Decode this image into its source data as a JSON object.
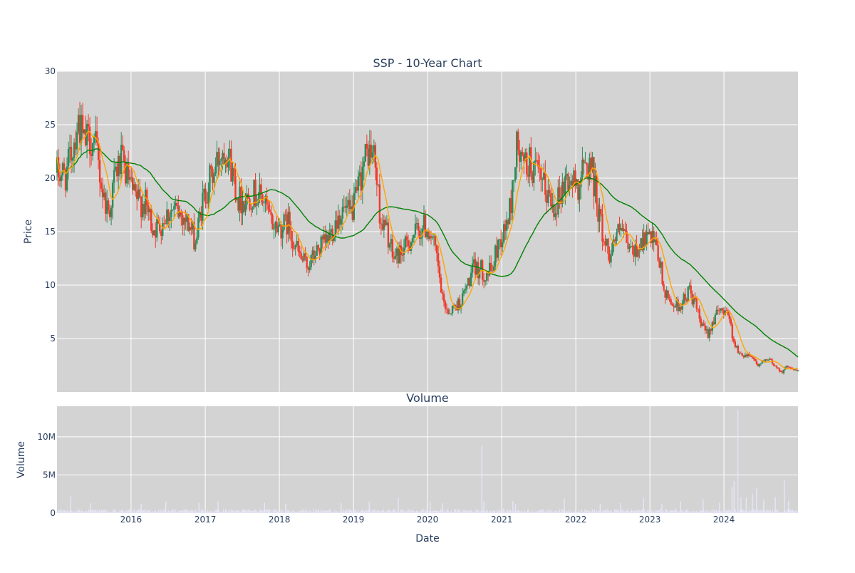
{
  "chart_data": [
    {
      "type": "candlestick",
      "title": "SSP - 10-Year Chart",
      "xlabel": "",
      "ylabel": "Price",
      "x_range": [
        "2015-01-01",
        "2024-12-31"
      ],
      "ylim": [
        0,
        30
      ],
      "y_ticks": [
        5,
        10,
        15,
        20,
        25,
        30
      ],
      "x_ticks": [
        "2016",
        "2017",
        "2018",
        "2019",
        "2020",
        "2021",
        "2022",
        "2023",
        "2024"
      ],
      "grid": true,
      "colors": {
        "up": "#2e8b57",
        "down": "#ef3b2c",
        "short_ma": "#ffa500",
        "long_ma": "#008000",
        "plot_bg": "#d3d3d3"
      },
      "series": [
        {
          "values": [
            [
              "2015-01",
              20.5
            ],
            [
              "2015-02",
              20.3
            ],
            [
              "2015-03",
              22.5
            ],
            [
              "2015-04",
              25.5
            ],
            [
              "2015-05",
              23.2
            ],
            [
              "2015-06",
              23.8
            ],
            [
              "2015-07",
              22.5
            ],
            [
              "2015-08",
              18.5
            ],
            [
              "2015-09",
              16.8
            ],
            [
              "2015-10",
              20.5
            ],
            [
              "2015-11",
              21.5
            ],
            [
              "2015-12",
              20.0
            ],
            [
              "2016-01",
              18.2
            ],
            [
              "2016-02",
              17.8
            ],
            [
              "2016-03",
              17.5
            ],
            [
              "2016-04",
              15.5
            ],
            [
              "2016-05",
              15.3
            ],
            [
              "2016-06",
              16.5
            ],
            [
              "2016-07",
              17.0
            ],
            [
              "2016-08",
              16.8
            ],
            [
              "2016-09",
              16.5
            ],
            [
              "2016-10",
              15.5
            ],
            [
              "2016-11",
              14.0
            ],
            [
              "2016-12",
              17.5
            ],
            [
              "2017-01",
              19.5
            ],
            [
              "2017-02",
              20.5
            ],
            [
              "2017-03",
              22.5
            ],
            [
              "2017-04",
              23.0
            ],
            [
              "2017-05",
              20.5
            ],
            [
              "2017-06",
              18.0
            ],
            [
              "2017-07",
              18.0
            ],
            [
              "2017-08",
              18.5
            ],
            [
              "2017-09",
              18.5
            ],
            [
              "2017-10",
              18.0
            ],
            [
              "2017-11",
              16.0
            ],
            [
              "2017-12",
              15.5
            ],
            [
              "2018-01",
              15.5
            ],
            [
              "2018-02",
              15.8
            ],
            [
              "2018-03",
              14.0
            ],
            [
              "2018-04",
              12.5
            ],
            [
              "2018-05",
              11.8
            ],
            [
              "2018-06",
              12.5
            ],
            [
              "2018-07",
              13.5
            ],
            [
              "2018-08",
              13.8
            ],
            [
              "2018-09",
              15.0
            ],
            [
              "2018-10",
              16.5
            ],
            [
              "2018-11",
              17.0
            ],
            [
              "2018-12",
              16.5
            ],
            [
              "2019-01",
              18.0
            ],
            [
              "2019-02",
              21.0
            ],
            [
              "2019-03",
              22.5
            ],
            [
              "2019-04",
              22.0
            ],
            [
              "2019-05",
              16.0
            ],
            [
              "2019-06",
              15.0
            ],
            [
              "2019-07",
              12.5
            ],
            [
              "2019-08",
              13.0
            ],
            [
              "2019-09",
              13.5
            ],
            [
              "2019-10",
              14.5
            ],
            [
              "2019-11",
              15.0
            ],
            [
              "2019-12",
              15.5
            ],
            [
              "2020-01",
              15.0
            ],
            [
              "2020-02",
              12.5
            ],
            [
              "2020-03",
              8.5
            ],
            [
              "2020-04",
              7.5
            ],
            [
              "2020-05",
              8.0
            ],
            [
              "2020-06",
              8.5
            ],
            [
              "2020-07",
              10.0
            ],
            [
              "2020-08",
              11.5
            ],
            [
              "2020-09",
              11.5
            ],
            [
              "2020-10",
              11.0
            ],
            [
              "2020-11",
              11.5
            ],
            [
              "2020-12",
              14.0
            ],
            [
              "2021-01",
              15.0
            ],
            [
              "2021-02",
              17.5
            ],
            [
              "2021-03",
              23.0
            ],
            [
              "2021-04",
              21.0
            ],
            [
              "2021-05",
              21.5
            ],
            [
              "2021-06",
              20.5
            ],
            [
              "2021-07",
              19.5
            ],
            [
              "2021-08",
              18.5
            ],
            [
              "2021-09",
              17.5
            ],
            [
              "2021-10",
              18.5
            ],
            [
              "2021-11",
              20.0
            ],
            [
              "2021-12",
              19.5
            ],
            [
              "2022-01",
              19.5
            ],
            [
              "2022-02",
              21.0
            ],
            [
              "2022-03",
              21.5
            ],
            [
              "2022-04",
              18.0
            ],
            [
              "2022-05",
              14.5
            ],
            [
              "2022-06",
              13.0
            ],
            [
              "2022-07",
              14.5
            ],
            [
              "2022-08",
              15.0
            ],
            [
              "2022-09",
              13.5
            ],
            [
              "2022-10",
              13.0
            ],
            [
              "2022-11",
              14.0
            ],
            [
              "2022-12",
              14.5
            ],
            [
              "2023-01",
              14.0
            ],
            [
              "2023-02",
              12.5
            ],
            [
              "2023-03",
              9.0
            ],
            [
              "2023-04",
              8.5
            ],
            [
              "2023-05",
              8.0
            ],
            [
              "2023-06",
              8.5
            ],
            [
              "2023-07",
              9.5
            ],
            [
              "2023-08",
              8.0
            ],
            [
              "2023-09",
              6.0
            ],
            [
              "2023-10",
              5.5
            ],
            [
              "2023-11",
              7.0
            ],
            [
              "2023-12",
              7.5
            ],
            [
              "2024-01",
              8.0
            ],
            [
              "2024-02",
              5.0
            ],
            [
              "2024-03",
              3.5
            ],
            [
              "2024-04",
              3.5
            ],
            [
              "2024-05",
              3.5
            ],
            [
              "2024-06",
              2.5
            ],
            [
              "2024-07",
              2.8
            ],
            [
              "2024-08",
              3.0
            ],
            [
              "2024-09",
              2.3
            ],
            [
              "2024-10",
              1.9
            ],
            [
              "2024-11",
              2.5
            ],
            [
              "2024-12",
              2.0
            ]
          ]
        }
      ],
      "volatility": 0.08
    },
    {
      "type": "bar",
      "title": "Volume",
      "xlabel": "Date",
      "ylabel": "Volume",
      "ylim": [
        0,
        14000000
      ],
      "y_ticks": [
        0,
        5000000,
        10000000
      ],
      "y_tick_labels": [
        "0",
        "5M",
        "10M"
      ],
      "x_ticks": [
        "2016",
        "2017",
        "2018",
        "2019",
        "2020",
        "2021",
        "2022",
        "2023",
        "2024"
      ],
      "baseline": 300000,
      "spikes": [
        [
          "2015-03-10",
          2300000
        ],
        [
          "2015-06-15",
          1300000
        ],
        [
          "2016-02-20",
          1200000
        ],
        [
          "2016-06-20",
          1500000
        ],
        [
          "2016-12-01",
          1300000
        ],
        [
          "2017-03-05",
          1600000
        ],
        [
          "2017-10-20",
          1400000
        ],
        [
          "2018-02-01",
          1200000
        ],
        [
          "2018-11-01",
          1300000
        ],
        [
          "2019-03-20",
          1500000
        ],
        [
          "2019-08-10",
          2000000
        ],
        [
          "2020-01-15",
          1500000
        ],
        [
          "2020-03-15",
          1300000
        ],
        [
          "2020-09-25",
          8800000
        ],
        [
          "2020-10-05",
          1500000
        ],
        [
          "2021-02-25",
          1600000
        ],
        [
          "2021-03-10",
          1200000
        ],
        [
          "2021-11-05",
          1900000
        ],
        [
          "2022-05-01",
          1200000
        ],
        [
          "2022-08-10",
          1300000
        ],
        [
          "2022-12-01",
          2000000
        ],
        [
          "2023-03-01",
          1200000
        ],
        [
          "2023-06-01",
          1500000
        ],
        [
          "2023-09-20",
          1800000
        ],
        [
          "2023-12-10",
          1400000
        ],
        [
          "2024-02-10",
          3400000
        ],
        [
          "2024-02-20",
          4200000
        ],
        [
          "2024-03-10",
          13500000
        ],
        [
          "2024-03-25",
          2100000
        ],
        [
          "2024-04-20",
          2000000
        ],
        [
          "2024-05-20",
          2500000
        ],
        [
          "2024-06-10",
          3300000
        ],
        [
          "2024-07-15",
          1800000
        ],
        [
          "2024-09-10",
          2100000
        ],
        [
          "2024-10-25",
          4300000
        ],
        [
          "2024-11-15",
          1600000
        ]
      ],
      "bar_color": "#e6e6fa"
    }
  ]
}
